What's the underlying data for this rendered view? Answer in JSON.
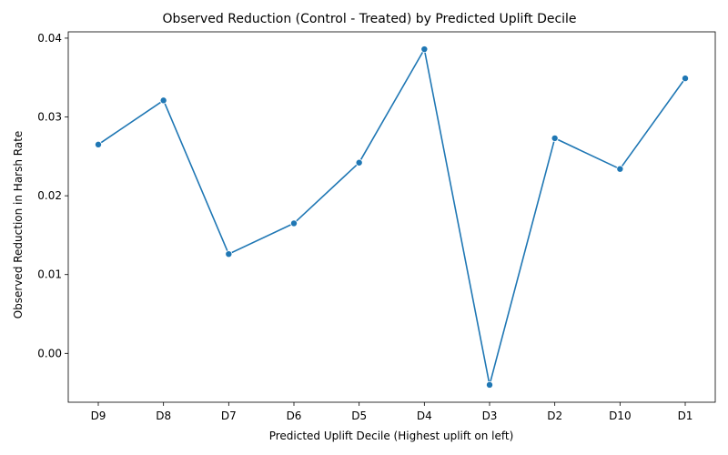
{
  "chart_data": {
    "type": "line",
    "title": "Observed Reduction (Control - Treated) by Predicted Uplift Decile",
    "xlabel": "Predicted Uplift Decile (Highest uplift on left)",
    "ylabel": "Observed Reduction in Harsh Rate",
    "categories": [
      "D9",
      "D8",
      "D7",
      "D6",
      "D5",
      "D4",
      "D3",
      "D2",
      "D10",
      "D1"
    ],
    "values": [
      0.0265,
      0.0321,
      0.0126,
      0.0165,
      0.0242,
      0.0386,
      -0.004,
      0.0273,
      0.0234,
      0.0349
    ],
    "ylim": [
      -0.0062,
      0.0408
    ],
    "yticks": [
      0.0,
      0.01,
      0.02,
      0.03,
      0.04
    ],
    "ytick_labels": [
      "0.00",
      "0.01",
      "0.02",
      "0.03",
      "0.04"
    ],
    "line_color": "#1f77b4",
    "grid": false,
    "markers": true
  }
}
